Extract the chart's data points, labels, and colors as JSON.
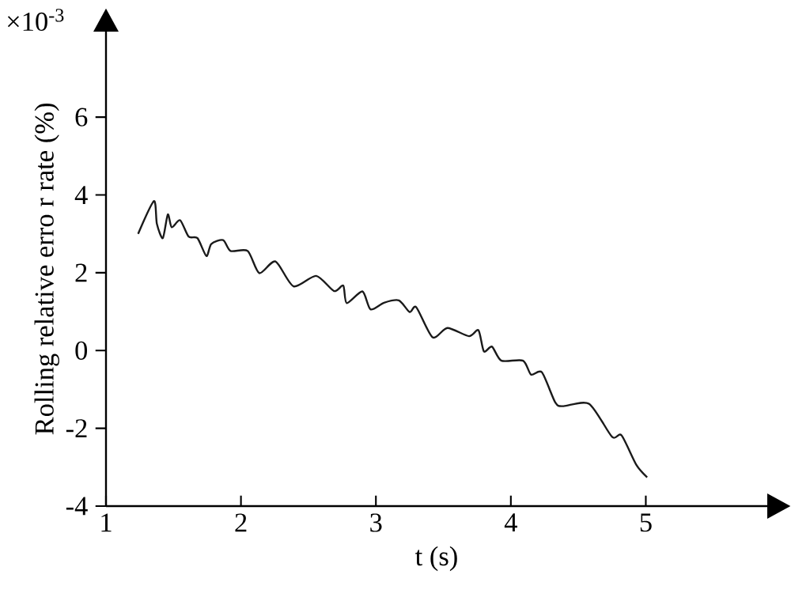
{
  "chart_data": {
    "type": "line",
    "xlabel": "t (s)",
    "ylabel": "Rolling relative erro r rate (%)",
    "annotations": [
      "×10$^{-3}$"
    ],
    "x": [
      1.238,
      1.355,
      1.377,
      1.421,
      1.458,
      1.487,
      1.549,
      1.612,
      1.678,
      1.744,
      1.78,
      1.868,
      1.923,
      2.05,
      2.136,
      2.256,
      2.39,
      2.557,
      2.69,
      2.758,
      2.784,
      2.9,
      2.96,
      3.06,
      3.17,
      3.25,
      3.3,
      3.42,
      3.53,
      3.69,
      3.76,
      3.8,
      3.86,
      3.93,
      4.09,
      4.15,
      4.23,
      4.33,
      4.39,
      4.58,
      4.75,
      4.82,
      4.93,
      5.01
    ],
    "values": [
      3.0,
      3.84,
      3.26,
      2.89,
      3.5,
      3.17,
      3.35,
      2.93,
      2.89,
      2.43,
      2.74,
      2.84,
      2.56,
      2.56,
      1.99,
      2.29,
      1.65,
      1.92,
      1.53,
      1.67,
      1.22,
      1.52,
      1.06,
      1.23,
      1.29,
      0.99,
      1.11,
      0.34,
      0.58,
      0.37,
      0.52,
      -0.02,
      0.1,
      -0.26,
      -0.26,
      -0.62,
      -0.56,
      -1.34,
      -1.43,
      -1.37,
      -2.22,
      -2.18,
      -2.94,
      -3.26
    ],
    "color": "#1a1a1a",
    "marker": "none",
    "line_style": "solid",
    "xlim": [
      1,
      5.9
    ],
    "ylim": [
      -4,
      8.2
    ],
    "xticks": [
      1,
      2,
      3,
      4,
      5
    ],
    "yticks": [
      -4,
      -2,
      0,
      2,
      4,
      6
    ]
  }
}
